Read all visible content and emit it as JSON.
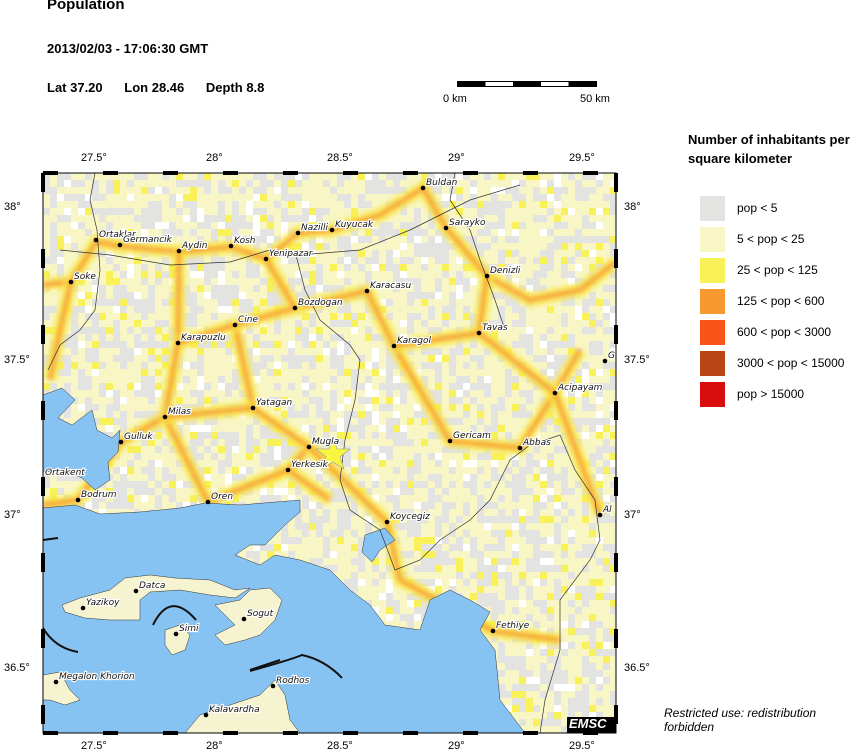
{
  "header": {
    "title": "Population",
    "datetime": "2013/02/03 - 17:06:30 GMT",
    "lat": "Lat 37.20",
    "lon": "Lon  28.46",
    "depth": "Depth  8.8"
  },
  "scale_bar": {
    "start_label": "0 km",
    "end_label": "50 km"
  },
  "legend": {
    "title": "Number of inhabitants per square kilometer",
    "items": [
      {
        "label": "pop < 5",
        "color": "#e3e3e1"
      },
      {
        "label": "5 < pop < 25",
        "color": "#f8f6c4"
      },
      {
        "label": "25 < pop < 125",
        "color": "#f8f158"
      },
      {
        "label": "125 < pop < 600",
        "color": "#f8992f"
      },
      {
        "label": "600 < pop < 3000",
        "color": "#fb5418"
      },
      {
        "label": "3000 < pop < 15000",
        "color": "#b84614"
      },
      {
        "label": "pop > 15000",
        "color": "#d80c0c"
      }
    ]
  },
  "axes": {
    "lon_labels": [
      "27.5°",
      "28°",
      "28.5°",
      "29°",
      "29.5°"
    ],
    "lat_labels": [
      "38°",
      "37.5°",
      "37°",
      "36.5°"
    ]
  },
  "map": {
    "sea_color": "#87c3f2",
    "epicenter_marker": "star-icon",
    "epicenter_color": "#f8f540",
    "cities": [
      "Buldan",
      "Sarayko",
      "Ortaklar",
      "Germancik",
      "Aydin",
      "Kosh",
      "Nazilli",
      "Kuyucak",
      "Yenipazar",
      "Denizli",
      "Soke",
      "Karacasu",
      "Bozdogan",
      "Cine",
      "Tavas",
      "Karapuzlu",
      "Karagol",
      "G",
      "Acipayam",
      "Yatagan",
      "Milas",
      "Gulluk",
      "Gericam",
      "Abbas",
      "Mugla",
      "Yerkesik",
      "Ortakent",
      "Bodrum",
      "Oren",
      "Al",
      "Koycegiz",
      "Datca",
      "Yazikoy",
      "Simi",
      "Sogut",
      "Fethiye",
      "Megalon Khorion",
      "Rodhos",
      "Kalavardha"
    ]
  },
  "credit": "EMSC",
  "restricted": "Restricted use: redistribution forbidden"
}
